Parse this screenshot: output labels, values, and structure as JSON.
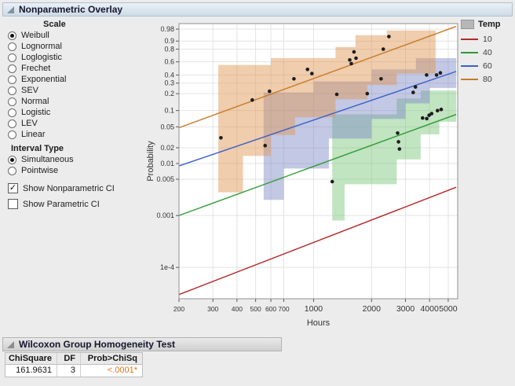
{
  "overlay": {
    "title": "Nonparametric Overlay"
  },
  "controls": {
    "scale": {
      "label": "Scale",
      "options": [
        {
          "label": "Weibull",
          "selected": true
        },
        {
          "label": "Lognormal",
          "selected": false
        },
        {
          "label": "Loglogistic",
          "selected": false
        },
        {
          "label": "Frechet",
          "selected": false
        },
        {
          "label": "Exponential",
          "selected": false
        },
        {
          "label": "SEV",
          "selected": false
        },
        {
          "label": "Normal",
          "selected": false
        },
        {
          "label": "Logistic",
          "selected": false
        },
        {
          "label": "LEV",
          "selected": false
        },
        {
          "label": "Linear",
          "selected": false
        }
      ]
    },
    "interval_type": {
      "label": "Interval Type",
      "options": [
        {
          "label": "Simultaneous",
          "selected": true
        },
        {
          "label": "Pointwise",
          "selected": false
        }
      ]
    },
    "checkboxes": [
      {
        "label": "Show Nonparametric CI",
        "checked": true
      },
      {
        "label": "Show Parametric CI",
        "checked": false
      }
    ]
  },
  "legend": {
    "title": "Temp",
    "items": [
      {
        "label": "10",
        "color": "#b5282a"
      },
      {
        "label": "40",
        "color": "#2e9b33"
      },
      {
        "label": "60",
        "color": "#3a5fc8"
      },
      {
        "label": "80",
        "color": "#c87b28"
      }
    ]
  },
  "chart_data": {
    "type": "line",
    "title": "",
    "xlabel": "Hours",
    "ylabel": "Probability",
    "x_scale": "log10",
    "y_scale": "weibull-probability",
    "x_range": [
      200,
      5600
    ],
    "y_range_w": [
      1.61,
      -10.6
    ],
    "x_ticks": [
      200,
      300,
      400,
      500,
      600,
      700,
      1000,
      2000,
      3000,
      4000,
      5000
    ],
    "y_ticks": [
      0.98,
      0.9,
      0.8,
      0.6,
      0.4,
      0.3,
      0.2,
      0.1,
      0.05,
      0.02,
      0.01,
      0.005,
      0.001,
      0.0001
    ],
    "y_tick_labels": [
      "0.98",
      "0.9",
      "0.8",
      "0.6",
      "0.4",
      "0.3",
      "0.2",
      "0.1",
      "0.05",
      "0.02",
      "0.01",
      "0.005",
      "0.001",
      "1e-4"
    ],
    "grid_color": "#e3e3e3",
    "point_color": "#1c1c1c",
    "series": [
      {
        "name": "10",
        "color": "#b5282a",
        "line": [
          [
            200,
            3e-05
          ],
          [
            5500,
            0.0035
          ]
        ],
        "band": [],
        "band_color": "rgba(220,120,110,0.45)",
        "points": []
      },
      {
        "name": "40",
        "color": "#2e9b33",
        "line": [
          [
            200,
            0.001
          ],
          [
            5500,
            0.085
          ]
        ],
        "band": [
          [
            1250,
            0.085
          ],
          [
            2700,
            0.085
          ],
          [
            2700,
            0.165
          ],
          [
            3600,
            0.165
          ],
          [
            3600,
            0.225
          ],
          [
            5500,
            0.225
          ],
          [
            5500,
            0.062
          ],
          [
            4500,
            0.062
          ],
          [
            4500,
            0.036
          ],
          [
            3600,
            0.036
          ],
          [
            3600,
            0.012
          ],
          [
            2700,
            0.012
          ],
          [
            2700,
            0.004
          ],
          [
            1450,
            0.004
          ],
          [
            1450,
            0.0008
          ],
          [
            1250,
            0.0008
          ]
        ],
        "band_color": "rgba(118,196,118,0.45)",
        "points": [
          [
            1250,
            0.0045
          ],
          [
            2730,
            0.038
          ],
          [
            2760,
            0.026
          ],
          [
            2790,
            0.019
          ],
          [
            3680,
            0.073
          ],
          [
            3870,
            0.071
          ],
          [
            3980,
            0.082
          ],
          [
            4100,
            0.088
          ],
          [
            4400,
            0.1
          ],
          [
            4600,
            0.105
          ]
        ]
      },
      {
        "name": "60",
        "color": "#3a5fc8",
        "line": [
          [
            200,
            0.009
          ],
          [
            5500,
            0.45
          ]
        ],
        "band": [
          [
            550,
            0.21
          ],
          [
            1000,
            0.21
          ],
          [
            1000,
            0.32
          ],
          [
            2000,
            0.32
          ],
          [
            2000,
            0.48
          ],
          [
            3400,
            0.48
          ],
          [
            3400,
            0.66
          ],
          [
            5500,
            0.66
          ],
          [
            5500,
            0.25
          ],
          [
            4000,
            0.25
          ],
          [
            4000,
            0.135
          ],
          [
            3000,
            0.135
          ],
          [
            3000,
            0.07
          ],
          [
            2000,
            0.07
          ],
          [
            2000,
            0.03
          ],
          [
            1200,
            0.03
          ],
          [
            1200,
            0.008
          ],
          [
            700,
            0.008
          ],
          [
            700,
            0.002
          ],
          [
            550,
            0.002
          ]
        ],
        "band_color": "rgba(122,134,196,0.45)",
        "points": [
          [
            560,
            0.022
          ],
          [
            1320,
            0.195
          ],
          [
            1900,
            0.2
          ],
          [
            2240,
            0.35
          ],
          [
            3290,
            0.21
          ],
          [
            3380,
            0.26
          ],
          [
            3860,
            0.4
          ],
          [
            4350,
            0.4
          ],
          [
            4550,
            0.43
          ]
        ]
      },
      {
        "name": "80",
        "color": "#c87b28",
        "line": [
          [
            200,
            0.048
          ],
          [
            5500,
            0.988
          ]
        ],
        "band": [
          [
            320,
            0.55
          ],
          [
            600,
            0.55
          ],
          [
            600,
            0.66
          ],
          [
            1300,
            0.66
          ],
          [
            1300,
            0.83
          ],
          [
            1650,
            0.83
          ],
          [
            1650,
            0.95
          ],
          [
            2400,
            0.95
          ],
          [
            2400,
            0.975
          ],
          [
            4300,
            0.975
          ],
          [
            4300,
            0.42
          ],
          [
            2700,
            0.42
          ],
          [
            2700,
            0.28
          ],
          [
            1900,
            0.28
          ],
          [
            1900,
            0.16
          ],
          [
            1300,
            0.16
          ],
          [
            1300,
            0.075
          ],
          [
            800,
            0.075
          ],
          [
            800,
            0.035
          ],
          [
            600,
            0.035
          ],
          [
            600,
            0.014
          ],
          [
            430,
            0.014
          ],
          [
            430,
            0.0028
          ],
          [
            320,
            0.0028
          ]
        ],
        "band_color": "rgba(222,150,84,0.48)",
        "points": [
          [
            330,
            0.031
          ],
          [
            480,
            0.155
          ],
          [
            590,
            0.22
          ],
          [
            790,
            0.35
          ],
          [
            930,
            0.48
          ],
          [
            980,
            0.42
          ],
          [
            1540,
            0.63
          ],
          [
            1570,
            0.57
          ],
          [
            1620,
            0.76
          ],
          [
            1660,
            0.66
          ],
          [
            2300,
            0.8
          ],
          [
            2460,
            0.94
          ]
        ]
      }
    ]
  },
  "wilcoxon": {
    "title": "Wilcoxon Group Homogeneity Test",
    "columns": [
      "ChiSquare",
      "DF",
      "Prob>ChiSq"
    ],
    "rows": [
      [
        "161.9631",
        "3",
        "<.0001*"
      ]
    ],
    "value_colors": [
      null,
      null,
      "#e0771c"
    ]
  }
}
